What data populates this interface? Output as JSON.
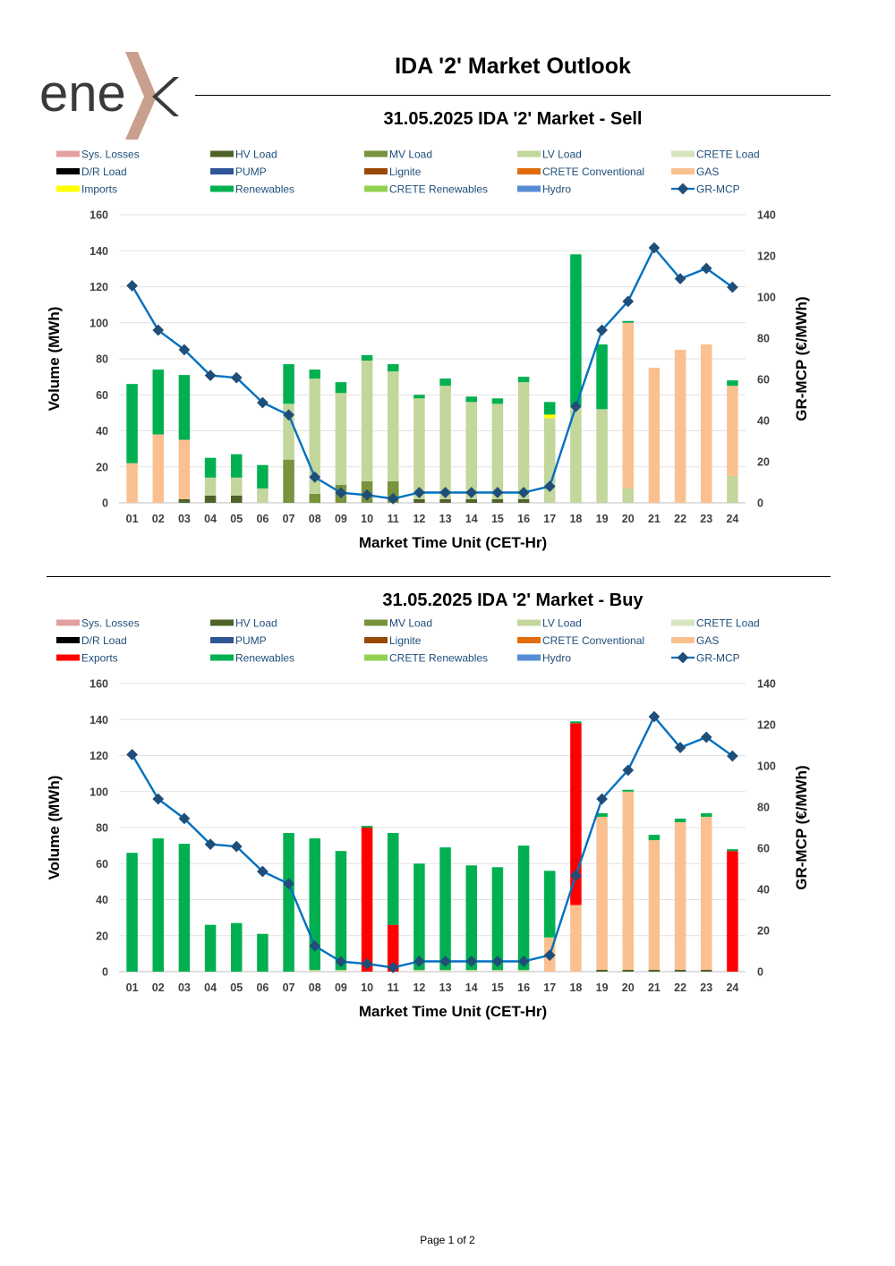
{
  "header": {
    "title": "IDA '2' Market Outlook",
    "logo_text": "ene",
    "logo_colors": {
      "text": "#3a3a3a",
      "x_mark": "#c9a08e"
    }
  },
  "footer": {
    "page_label": "Page 1 of 2"
  },
  "colors": {
    "Sys. Losses": "#e3a0a0",
    "HV Load": "#4f6228",
    "MV Load": "#77933c",
    "LV Load": "#c3d69b",
    "CRETE Load": "#d7e4bd",
    "D/R Load": "#000000",
    "PUMP": "#2f5597",
    "Lignite": "#984807",
    "CRETE Conventional": "#e36c0a",
    "GAS": "#fac090",
    "Imports": "#ffff00",
    "Exports": "#ff0000",
    "Renewables": "#00b050",
    "CRETE Renewables": "#92d050",
    "Hydro": "#558ed5",
    "GR-MCP": "#1f4e79",
    "line": "#0070c0"
  },
  "chart_data": [
    {
      "type": "bar",
      "stacked": true,
      "title": "31.05.2025  IDA '2' Market - Sell",
      "xlabel": "Market Time Unit (CET-Hr)",
      "ylabel": "Volume (MWh)",
      "y2label": "GR-MCP (€/MWh)",
      "ylim": [
        0,
        160
      ],
      "y2lim": [
        0,
        140
      ],
      "yticks": [
        0,
        20,
        40,
        60,
        80,
        100,
        120,
        140,
        160
      ],
      "y2ticks": [
        0,
        20,
        40,
        60,
        80,
        100,
        120,
        140
      ],
      "legend": [
        "Sys. Losses",
        "HV Load",
        "MV Load",
        "LV Load",
        "CRETE Load",
        "D/R Load",
        "PUMP",
        "Lignite",
        "CRETE Conventional",
        "GAS",
        "Imports",
        "Renewables",
        "CRETE Renewables",
        "Hydro",
        "GR-MCP"
      ],
      "categories": [
        "01",
        "02",
        "03",
        "04",
        "05",
        "06",
        "07",
        "08",
        "09",
        "10",
        "11",
        "12",
        "13",
        "14",
        "15",
        "16",
        "17",
        "18",
        "19",
        "20",
        "21",
        "22",
        "23",
        "24"
      ],
      "series": [
        {
          "name": "HV Load",
          "values": [
            0,
            0,
            2,
            4,
            4,
            0,
            0,
            0,
            0,
            0,
            0,
            2,
            2,
            2,
            2,
            2,
            0,
            0,
            0,
            0,
            0,
            0,
            0,
            0
          ]
        },
        {
          "name": "MV Load",
          "values": [
            0,
            0,
            0,
            0,
            0,
            0,
            24,
            5,
            10,
            12,
            12,
            0,
            0,
            0,
            0,
            0,
            0,
            0,
            0,
            0,
            0,
            0,
            0,
            0
          ]
        },
        {
          "name": "LV Load",
          "values": [
            0,
            0,
            0,
            10,
            10,
            8,
            31,
            64,
            51,
            67,
            61,
            56,
            63,
            54,
            53,
            65,
            47,
            54,
            52,
            8,
            0,
            0,
            0,
            15
          ]
        },
        {
          "name": "GAS",
          "values": [
            22,
            38,
            33,
            0,
            0,
            0,
            0,
            0,
            0,
            0,
            0,
            0,
            0,
            0,
            0,
            0,
            0,
            0,
            0,
            92,
            75,
            85,
            88,
            50
          ]
        },
        {
          "name": "Imports",
          "values": [
            0,
            0,
            0,
            0,
            0,
            0,
            0,
            0,
            0,
            0,
            0,
            0,
            0,
            0,
            0,
            0,
            2,
            0,
            0,
            0,
            0,
            0,
            0,
            0
          ]
        },
        {
          "name": "Renewables",
          "values": [
            44,
            36,
            36,
            11,
            13,
            13,
            22,
            5,
            6,
            3,
            4,
            2,
            4,
            3,
            3,
            3,
            7,
            84,
            36,
            1,
            0,
            0,
            0,
            3
          ]
        }
      ],
      "mcp": [
        105.5,
        83.9,
        74.4,
        61.9,
        60.8,
        48.7,
        42.7,
        12.5,
        4.9,
        3.8,
        2.0,
        5.0,
        5.0,
        5.0,
        5.0,
        5.0,
        8.0,
        46.8,
        83.9,
        97.9,
        123.9,
        108.9,
        113.9,
        104.8
      ]
    },
    {
      "type": "bar",
      "stacked": true,
      "title": "31.05.2025  IDA '2' Market - Buy",
      "xlabel": "Market Time Unit (CET-Hr)",
      "ylabel": "Volume (MWh)",
      "y2label": "GR-MCP (€/MWh)",
      "ylim": [
        0,
        160
      ],
      "y2lim": [
        0,
        140
      ],
      "yticks": [
        0,
        20,
        40,
        60,
        80,
        100,
        120,
        140,
        160
      ],
      "y2ticks": [
        0,
        20,
        40,
        60,
        80,
        100,
        120,
        140
      ],
      "legend": [
        "Sys. Losses",
        "HV Load",
        "MV Load",
        "LV Load",
        "CRETE Load",
        "D/R Load",
        "PUMP",
        "Lignite",
        "CRETE Conventional",
        "GAS",
        "Exports",
        "Renewables",
        "CRETE Renewables",
        "Hydro",
        "GR-MCP"
      ],
      "categories": [
        "01",
        "02",
        "03",
        "04",
        "05",
        "06",
        "07",
        "08",
        "09",
        "10",
        "11",
        "12",
        "13",
        "14",
        "15",
        "16",
        "17",
        "18",
        "19",
        "20",
        "21",
        "22",
        "23",
        "24"
      ],
      "series": [
        {
          "name": "HV Load",
          "values": [
            0,
            0,
            0,
            0,
            0,
            0,
            0,
            0,
            0,
            0,
            0,
            0,
            0,
            0,
            0,
            0,
            0,
            0,
            1,
            1,
            1,
            1,
            1,
            0
          ]
        },
        {
          "name": "LV Load",
          "values": [
            0,
            0,
            0,
            0,
            0,
            0,
            0,
            1,
            1,
            0,
            0,
            1,
            1,
            1,
            1,
            1,
            0,
            0,
            0,
            0,
            0,
            0,
            0,
            0
          ]
        },
        {
          "name": "GAS",
          "values": [
            0,
            0,
            0,
            0,
            0,
            0,
            0,
            0,
            0,
            0,
            0,
            0,
            0,
            0,
            0,
            0,
            19,
            37,
            85,
            99,
            72,
            82,
            85,
            0
          ]
        },
        {
          "name": "Exports",
          "values": [
            0,
            0,
            0,
            0,
            0,
            0,
            0,
            0,
            0,
            80,
            26,
            0,
            0,
            0,
            0,
            0,
            0,
            101,
            0,
            0,
            0,
            0,
            0,
            67
          ]
        },
        {
          "name": "Renewables",
          "values": [
            66,
            74,
            71,
            26,
            27,
            21,
            77,
            73,
            66,
            1,
            51,
            59,
            68,
            58,
            57,
            69,
            37,
            1,
            2,
            1,
            3,
            2,
            2,
            1
          ]
        }
      ],
      "mcp": [
        105.5,
        83.9,
        74.4,
        61.9,
        60.8,
        48.7,
        42.7,
        12.5,
        4.9,
        3.8,
        2.0,
        5.0,
        5.0,
        5.0,
        5.0,
        5.0,
        8.0,
        46.8,
        83.9,
        97.9,
        123.9,
        108.9,
        113.9,
        104.8
      ]
    }
  ]
}
